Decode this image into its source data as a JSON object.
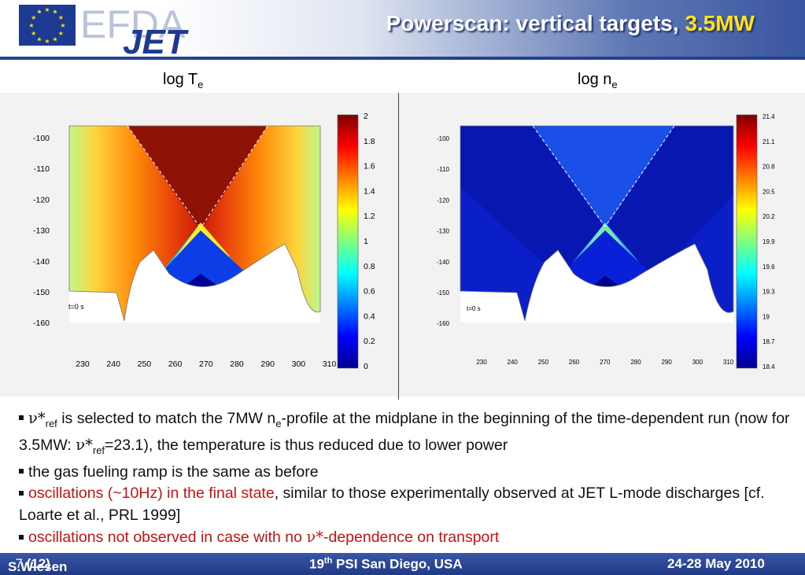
{
  "header": {
    "logo_efda": "EFDA",
    "logo_jet": "JET",
    "title_main": "Powerscan: vertical targets, ",
    "title_accent": "3.5MW",
    "colors": {
      "bar": "#25408f",
      "accent": "#ffe21a",
      "eu_star": "#ffdd00"
    }
  },
  "plots": {
    "left_label_main": "log T",
    "left_label_sub": "e",
    "right_label_main": "log n",
    "right_label_sub": "e",
    "y_ticks": [
      "-100",
      "-110",
      "-120",
      "-130",
      "-140",
      "-150",
      "-160"
    ],
    "x_ticks": [
      "230",
      "240",
      "250",
      "260",
      "270",
      "280",
      "290",
      "300",
      "310"
    ],
    "time_label": "t=0 s",
    "left_colorbar_ticks": [
      "2",
      "1.8",
      "1.6",
      "1.4",
      "1.2",
      "1",
      "0.8",
      "0.6",
      "0.4",
      "0.2",
      "0"
    ],
    "right_colorbar_ticks": [
      "21.4",
      "21.1",
      "20.8",
      "20.5",
      "20.2",
      "19.9",
      "19.6",
      "19.3",
      "19",
      "18.7",
      "18.4"
    ]
  },
  "bullets": {
    "b1_nu": "ν*",
    "b1_sub": "ref",
    "b1_text": " is selected to match the 7MW n",
    "b1_sub2": "e",
    "b1_text2": "-profile at the midplane in the beginning of the time-dependent run (now for 3.5MW: ",
    "b1_nu2": "ν*",
    "b1_sub3": "ref",
    "b1_text3": "=23.1), the temperature is thus reduced due to lower power",
    "b2_text": "the gas fueling ramp is the same as before",
    "b3_red": "oscillations (~10Hz) in the final state",
    "b3_text": ", similar to those experimentally observed at JET L-mode discharges [cf. Loarte et al., PRL 1999]",
    "b4_red1": "oscillations not observed in case with no ",
    "b4_nu": "ν*",
    "b4_red2": "-dependence on transport"
  },
  "footer": {
    "author": "S.Wiesen",
    "page": "7",
    "total": "(12)",
    "conf_num": "19",
    "conf_sup": "th",
    "conf_rest": " PSI San Diego, USA",
    "date": "24-28 May 2010"
  }
}
